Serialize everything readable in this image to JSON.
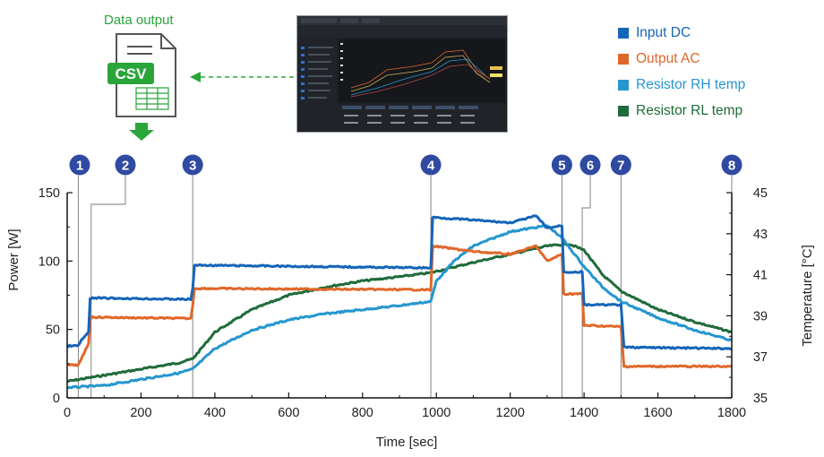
{
  "header": {
    "data_output_label": "Data output",
    "csv_label": "CSV"
  },
  "legend": [
    {
      "name": "Input DC",
      "color": "#1565b8"
    },
    {
      "name": "Output AC",
      "color": "#e0672a"
    },
    {
      "name": "Resistor RH temp",
      "color": "#2596cf"
    },
    {
      "name": "Resistor RL temp",
      "color": "#1f6b3a"
    }
  ],
  "chart_data": {
    "type": "line",
    "xlabel": "Time [sec]",
    "ylabel": "Power [W]",
    "y2label": "Temperature [°C]",
    "xlim": [
      0,
      1800
    ],
    "ylim": [
      0,
      150
    ],
    "y2lim": [
      35,
      45
    ],
    "xticks": [
      0,
      200,
      400,
      600,
      800,
      1000,
      1200,
      1400,
      1600,
      1800
    ],
    "yticks": [
      0,
      50,
      100,
      150
    ],
    "y2ticks": [
      35,
      37,
      39,
      41,
      43,
      45
    ],
    "markers": [
      {
        "label": "1",
        "x": 30
      },
      {
        "label": "2",
        "x": 65
      },
      {
        "label": "3",
        "x": 340
      },
      {
        "label": "4",
        "x": 985
      },
      {
        "label": "5",
        "x": 1340
      },
      {
        "label": "6",
        "x": 1395
      },
      {
        "label": "7",
        "x": 1500
      },
      {
        "label": "8",
        "x": 1800
      }
    ],
    "series": [
      {
        "name": "Input DC",
        "axis": "left",
        "color": "#1565b8",
        "x": [
          0,
          30,
          38,
          58,
          62,
          68,
          335,
          340,
          345,
          985,
          990,
          1100,
          1200,
          1270,
          1300,
          1340,
          1345,
          1395,
          1400,
          1500,
          1508,
          1800
        ],
        "y": [
          38,
          38,
          42,
          48,
          72,
          73,
          72,
          80,
          97,
          95,
          132,
          130,
          128,
          133,
          124,
          126,
          92,
          92,
          68,
          68,
          37,
          36
        ]
      },
      {
        "name": "Output AC",
        "axis": "left",
        "color": "#e0672a",
        "x": [
          0,
          30,
          38,
          58,
          62,
          68,
          335,
          340,
          345,
          985,
          990,
          1100,
          1200,
          1270,
          1300,
          1340,
          1345,
          1395,
          1400,
          1500,
          1508,
          1800
        ],
        "y": [
          24,
          24,
          28,
          40,
          58,
          59,
          58,
          68,
          80,
          79,
          111,
          107,
          105,
          111,
          100,
          105,
          76,
          76,
          53,
          52,
          23,
          23
        ]
      },
      {
        "name": "Resistor RH temp",
        "axis": "right",
        "color": "#2596cf",
        "x": [
          0,
          100,
          200,
          300,
          340,
          400,
          500,
          600,
          700,
          800,
          900,
          985,
          1000,
          1050,
          1100,
          1200,
          1300,
          1340,
          1400,
          1450,
          1500,
          1600,
          1700,
          1800
        ],
        "y": [
          35.5,
          35.6,
          35.9,
          36.2,
          36.4,
          37.4,
          38.3,
          38.8,
          39.1,
          39.3,
          39.5,
          39.7,
          40.7,
          41.7,
          42.4,
          43.1,
          43.4,
          42.8,
          41.4,
          40.4,
          39.7,
          38.9,
          38.3,
          37.8
        ]
      },
      {
        "name": "Resistor RL temp",
        "axis": "right",
        "color": "#1f6b3a",
        "x": [
          0,
          100,
          200,
          300,
          340,
          400,
          500,
          600,
          700,
          800,
          900,
          985,
          1100,
          1200,
          1300,
          1360,
          1400,
          1450,
          1500,
          1600,
          1700,
          1800
        ],
        "y": [
          35.8,
          36.1,
          36.4,
          36.7,
          36.9,
          38.2,
          39.3,
          40.0,
          40.4,
          40.7,
          40.9,
          41.1,
          41.6,
          42.0,
          42.4,
          42.5,
          42.2,
          41.0,
          40.2,
          39.3,
          38.7,
          38.2
        ]
      }
    ]
  }
}
